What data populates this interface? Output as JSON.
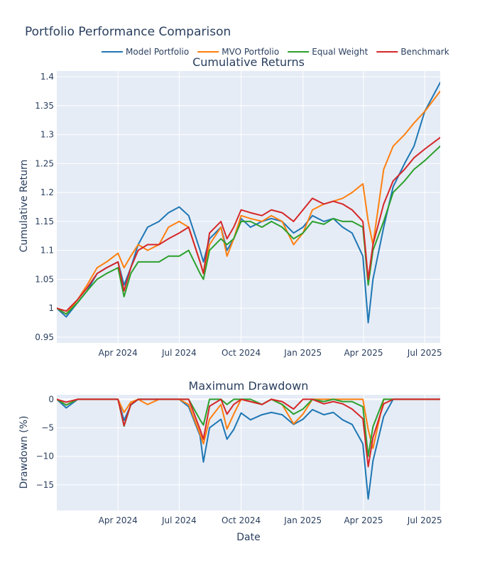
{
  "title": "Portfolio Performance Comparison",
  "xlabel": "Date",
  "colors": {
    "Model Portfolio": "#1f77b4",
    "MVO Portfolio": "#ff7f0e",
    "Equal Weight": "#2ca02c",
    "Benchmark": "#d62728"
  },
  "chart_data": [
    {
      "type": "line",
      "title": "Cumulative Returns",
      "ylabel": "Cumulative Return",
      "xlim": [
        "2024-01-01",
        "2025-07-24"
      ],
      "ylim": [
        0.94,
        1.41
      ],
      "yticks": [
        0.95,
        1,
        1.05,
        1.1,
        1.15,
        1.2,
        1.25,
        1.3,
        1.35,
        1.4
      ],
      "ytick_labels": [
        "0.95",
        "1",
        "1.05",
        "1.1",
        "1.15",
        "1.2",
        "1.25",
        "1.3",
        "1.35",
        "1.4"
      ],
      "xticks": [
        "2024-04-01",
        "2024-07-01",
        "2024-10-01",
        "2025-01-01",
        "2025-04-01",
        "2025-07-01"
      ],
      "xtick_labels": [
        "Apr 2024",
        "Jul 2024",
        "Oct 2024",
        "Jan 2025",
        "Apr 2025",
        "Jul 2025"
      ],
      "grid": true,
      "legend": "top",
      "x": [
        "2024-01-01",
        "2024-01-15",
        "2024-02-01",
        "2024-02-15",
        "2024-03-01",
        "2024-03-15",
        "2024-04-01",
        "2024-04-10",
        "2024-04-20",
        "2024-05-01",
        "2024-05-15",
        "2024-06-01",
        "2024-06-15",
        "2024-07-01",
        "2024-07-15",
        "2024-08-01",
        "2024-08-06",
        "2024-08-15",
        "2024-09-01",
        "2024-09-10",
        "2024-09-20",
        "2024-10-01",
        "2024-10-15",
        "2024-11-01",
        "2024-11-15",
        "2024-12-01",
        "2024-12-18",
        "2025-01-01",
        "2025-01-15",
        "2025-02-01",
        "2025-02-15",
        "2025-03-01",
        "2025-03-15",
        "2025-03-31",
        "2025-04-08",
        "2025-04-15",
        "2025-05-01",
        "2025-05-15",
        "2025-06-01",
        "2025-06-15",
        "2025-07-01",
        "2025-07-24"
      ],
      "series": [
        {
          "name": "Model Portfolio",
          "values": [
            1.0,
            0.985,
            1.01,
            1.03,
            1.06,
            1.07,
            1.08,
            1.04,
            1.07,
            1.11,
            1.14,
            1.15,
            1.165,
            1.175,
            1.16,
            1.1,
            1.08,
            1.12,
            1.14,
            1.1,
            1.12,
            1.155,
            1.14,
            1.15,
            1.155,
            1.15,
            1.13,
            1.14,
            1.16,
            1.15,
            1.155,
            1.14,
            1.13,
            1.09,
            0.975,
            1.05,
            1.14,
            1.21,
            1.25,
            1.28,
            1.34,
            1.39
          ]
        },
        {
          "name": "MVO Portfolio",
          "values": [
            1.0,
            0.99,
            1.015,
            1.04,
            1.07,
            1.08,
            1.095,
            1.07,
            1.09,
            1.11,
            1.1,
            1.11,
            1.14,
            1.15,
            1.14,
            1.08,
            1.06,
            1.11,
            1.14,
            1.09,
            1.12,
            1.16,
            1.155,
            1.15,
            1.16,
            1.15,
            1.11,
            1.13,
            1.17,
            1.18,
            1.185,
            1.19,
            1.2,
            1.215,
            1.15,
            1.11,
            1.24,
            1.28,
            1.3,
            1.32,
            1.34,
            1.375
          ]
        },
        {
          "name": "Equal Weight",
          "values": [
            1.0,
            0.99,
            1.01,
            1.03,
            1.05,
            1.06,
            1.07,
            1.02,
            1.06,
            1.08,
            1.08,
            1.08,
            1.09,
            1.09,
            1.1,
            1.06,
            1.05,
            1.1,
            1.12,
            1.11,
            1.12,
            1.15,
            1.15,
            1.14,
            1.15,
            1.14,
            1.12,
            1.13,
            1.15,
            1.145,
            1.155,
            1.15,
            1.15,
            1.14,
            1.04,
            1.1,
            1.15,
            1.2,
            1.22,
            1.24,
            1.255,
            1.28
          ]
        },
        {
          "name": "Benchmark",
          "values": [
            1.0,
            0.995,
            1.015,
            1.035,
            1.06,
            1.07,
            1.08,
            1.03,
            1.07,
            1.1,
            1.11,
            1.11,
            1.12,
            1.13,
            1.14,
            1.08,
            1.06,
            1.13,
            1.15,
            1.12,
            1.14,
            1.17,
            1.165,
            1.16,
            1.17,
            1.165,
            1.15,
            1.17,
            1.19,
            1.18,
            1.185,
            1.18,
            1.17,
            1.15,
            1.05,
            1.11,
            1.18,
            1.22,
            1.24,
            1.26,
            1.275,
            1.295
          ]
        }
      ]
    },
    {
      "type": "line",
      "title": "Maximum Drawdown",
      "ylabel": "Drawdown (%)",
      "xlabel": "Date",
      "xlim": [
        "2024-01-01",
        "2025-07-24"
      ],
      "ylim": [
        -19.5,
        0.8
      ],
      "yticks": [
        0,
        -5,
        -10,
        -15
      ],
      "ytick_labels": [
        "0",
        "−5",
        "−10",
        "−15"
      ],
      "xticks": [
        "2024-04-01",
        "2024-07-01",
        "2024-10-01",
        "2025-01-01",
        "2025-04-01",
        "2025-07-01"
      ],
      "xtick_labels": [
        "Apr 2024",
        "Jul 2024",
        "Oct 2024",
        "Jan 2025",
        "Apr 2025",
        "Jul 2025"
      ],
      "grid": true,
      "x": [
        "2024-01-01",
        "2024-01-15",
        "2024-02-01",
        "2024-02-15",
        "2024-03-01",
        "2024-03-15",
        "2024-04-01",
        "2024-04-10",
        "2024-04-20",
        "2024-05-01",
        "2024-05-15",
        "2024-06-01",
        "2024-06-15",
        "2024-07-01",
        "2024-07-15",
        "2024-08-01",
        "2024-08-06",
        "2024-08-15",
        "2024-09-01",
        "2024-09-10",
        "2024-09-20",
        "2024-10-01",
        "2024-10-15",
        "2024-11-01",
        "2024-11-15",
        "2024-12-01",
        "2024-12-18",
        "2025-01-01",
        "2025-01-15",
        "2025-02-01",
        "2025-02-15",
        "2025-03-01",
        "2025-03-15",
        "2025-03-31",
        "2025-04-08",
        "2025-04-15",
        "2025-05-01",
        "2025-05-15",
        "2025-06-01",
        "2025-06-15",
        "2025-07-01",
        "2025-07-24"
      ],
      "series": [
        {
          "name": "Model Portfolio",
          "values": [
            0,
            -1.5,
            0,
            0,
            0,
            0,
            0,
            -3.7,
            -1.0,
            0,
            0,
            0,
            0,
            0,
            -1.3,
            -6.4,
            -11.0,
            -5.0,
            -3.5,
            -7.0,
            -5.3,
            -2.4,
            -3.6,
            -2.7,
            -2.3,
            -2.7,
            -4.4,
            -3.5,
            -1.8,
            -2.7,
            -2.3,
            -3.6,
            -4.4,
            -7.8,
            -17.5,
            -10.8,
            -3.0,
            0,
            0,
            0,
            0,
            0
          ]
        },
        {
          "name": "MVO Portfolio",
          "values": [
            0,
            -1.0,
            0,
            0,
            0,
            0,
            0,
            -2.3,
            -0.5,
            0,
            -0.9,
            0,
            0,
            0,
            -0.9,
            -6.1,
            -7.8,
            -3.5,
            -0.9,
            -5.2,
            -2.6,
            0,
            -0.4,
            -0.9,
            0,
            -0.9,
            -4.3,
            -2.6,
            0,
            0,
            0,
            0,
            0,
            0,
            -5.3,
            -8.6,
            0,
            0,
            0,
            0,
            0,
            0
          ]
        },
        {
          "name": "Equal Weight",
          "values": [
            0,
            -1.0,
            0,
            0,
            0,
            0,
            0,
            -4.7,
            -0.9,
            0,
            0,
            0,
            0,
            0,
            0,
            -3.6,
            -4.5,
            0,
            0,
            -0.9,
            0,
            0,
            0,
            -0.9,
            0,
            -0.9,
            -2.6,
            -1.7,
            0,
            -0.4,
            0,
            -0.4,
            -0.4,
            -1.3,
            -10.0,
            -4.8,
            0,
            0,
            0,
            0,
            0,
            0
          ]
        },
        {
          "name": "Benchmark",
          "values": [
            0,
            -0.5,
            0,
            0,
            0,
            0,
            0,
            -4.6,
            -0.9,
            0,
            0,
            0,
            0,
            0,
            0,
            -5.3,
            -7.0,
            -1.2,
            0,
            -2.6,
            -0.9,
            0,
            -0.4,
            -0.9,
            0,
            -0.4,
            -1.7,
            0,
            0,
            -0.8,
            -0.4,
            -0.8,
            -1.7,
            -3.4,
            -11.8,
            -6.7,
            -0.8,
            0,
            0,
            0,
            0,
            0
          ]
        }
      ]
    }
  ]
}
